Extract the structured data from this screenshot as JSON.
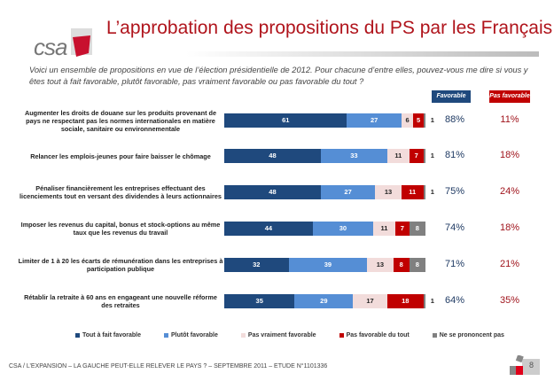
{
  "header": {
    "logo_text": "csa",
    "title": "L’approbation des propositions du PS par les Français"
  },
  "question": "Voici un ensemble de propositions en vue de l’élection présidentielle de 2012. Pour chacune d’entre elles, pouvez-vous me dire si vous y êtes tout à fait favorable, plutôt favorable, pas vraiment favorable ou pas favorable du tout ?",
  "columns": {
    "favorable": "Favorable",
    "pas_favorable": "Pas favorable"
  },
  "colors": {
    "tout": "#1f497d",
    "plutot": "#558ed5",
    "pas_vraiment": "#f2dcdb",
    "pas_du_tout": "#c00000",
    "nsp": "#808080"
  },
  "chart_data": {
    "type": "bar",
    "orientation": "horizontal",
    "stacked": true,
    "xlim": [
      0,
      100
    ],
    "categories": [
      "Augmenter les droits de douane sur les produits provenant de pays ne respectant pas les normes internationales en matière sociale, sanitaire ou environnementale",
      "Relancer les emplois-jeunes pour faire baisser le chômage",
      "Pénaliser financièrement les entreprises effectuant des licenciements tout en versant des dividendes à leurs actionnaires",
      "Imposer les revenus du capital, bonus et stock-options au même taux que les revenus du travail",
      "Limiter de 1 à 20 les écarts de rémunération dans les entreprises à participation publique",
      "Rétablir la retraite à 60 ans en engageant une nouvelle réforme des retraites"
    ],
    "series": [
      {
        "name": "Tout à fait favorable",
        "values": [
          61,
          48,
          48,
          44,
          32,
          35
        ]
      },
      {
        "name": "Plutôt favorable",
        "values": [
          27,
          33,
          27,
          30,
          39,
          29
        ]
      },
      {
        "name": "Pas vraiment favorable",
        "values": [
          6,
          11,
          13,
          11,
          13,
          17
        ]
      },
      {
        "name": "Pas favorable du tout",
        "values": [
          5,
          7,
          11,
          7,
          8,
          18
        ]
      },
      {
        "name": "Ne se prononcent pas",
        "values": [
          1,
          1,
          1,
          8,
          8,
          1
        ]
      }
    ],
    "favorable_totals": [
      "88%",
      "81%",
      "75%",
      "74%",
      "71%",
      "64%"
    ],
    "pas_favorable_totals": [
      "11%",
      "18%",
      "24%",
      "18%",
      "21%",
      "35%"
    ],
    "legend_position": "bottom"
  },
  "footer": "CSA / L’EXPANSION – LA GAUCHE PEUT-ELLE RELEVER LE PAYS ? – SEPTEMBRE 2011 – ETUDE N°1101336",
  "page_number": "8"
}
